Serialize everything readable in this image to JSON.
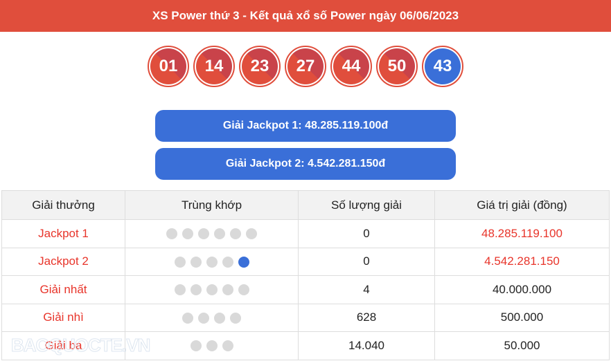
{
  "header": {
    "title": "XS Power thứ 3 - Kết quả xổ số Power ngày 06/06/2023"
  },
  "balls": [
    "01",
    "14",
    "23",
    "27",
    "44",
    "50"
  ],
  "special_ball": "43",
  "jackpots": [
    "Giải Jackpot 1: 48.285.119.100đ",
    "Giải Jackpot 2: 4.542.281.150đ"
  ],
  "table": {
    "columns": [
      "Giải thưởng",
      "Trùng khớp",
      "Số lượng giải",
      "Giá trị giải (đồng)"
    ],
    "rows": [
      {
        "name": "Jackpot 1",
        "dots": 6,
        "special_dot": false,
        "count": "0",
        "value": "48.285.119.100",
        "value_red": true
      },
      {
        "name": "Jackpot 2",
        "dots": 5,
        "special_dot": true,
        "count": "0",
        "value": "4.542.281.150",
        "value_red": true
      },
      {
        "name": "Giải nhất",
        "dots": 5,
        "special_dot": false,
        "count": "4",
        "value": "40.000.000",
        "value_red": false
      },
      {
        "name": "Giải nhì",
        "dots": 4,
        "special_dot": false,
        "count": "628",
        "value": "500.000",
        "value_red": false
      },
      {
        "name": "Giải ba",
        "dots": 3,
        "special_dot": false,
        "count": "14.040",
        "value": "50.000",
        "value_red": false
      }
    ]
  },
  "watermark": "BAOQUOCTE.VN",
  "colors": {
    "red": "#e04e3c",
    "blue": "#3a6fd8",
    "text_red": "#e8342a"
  }
}
